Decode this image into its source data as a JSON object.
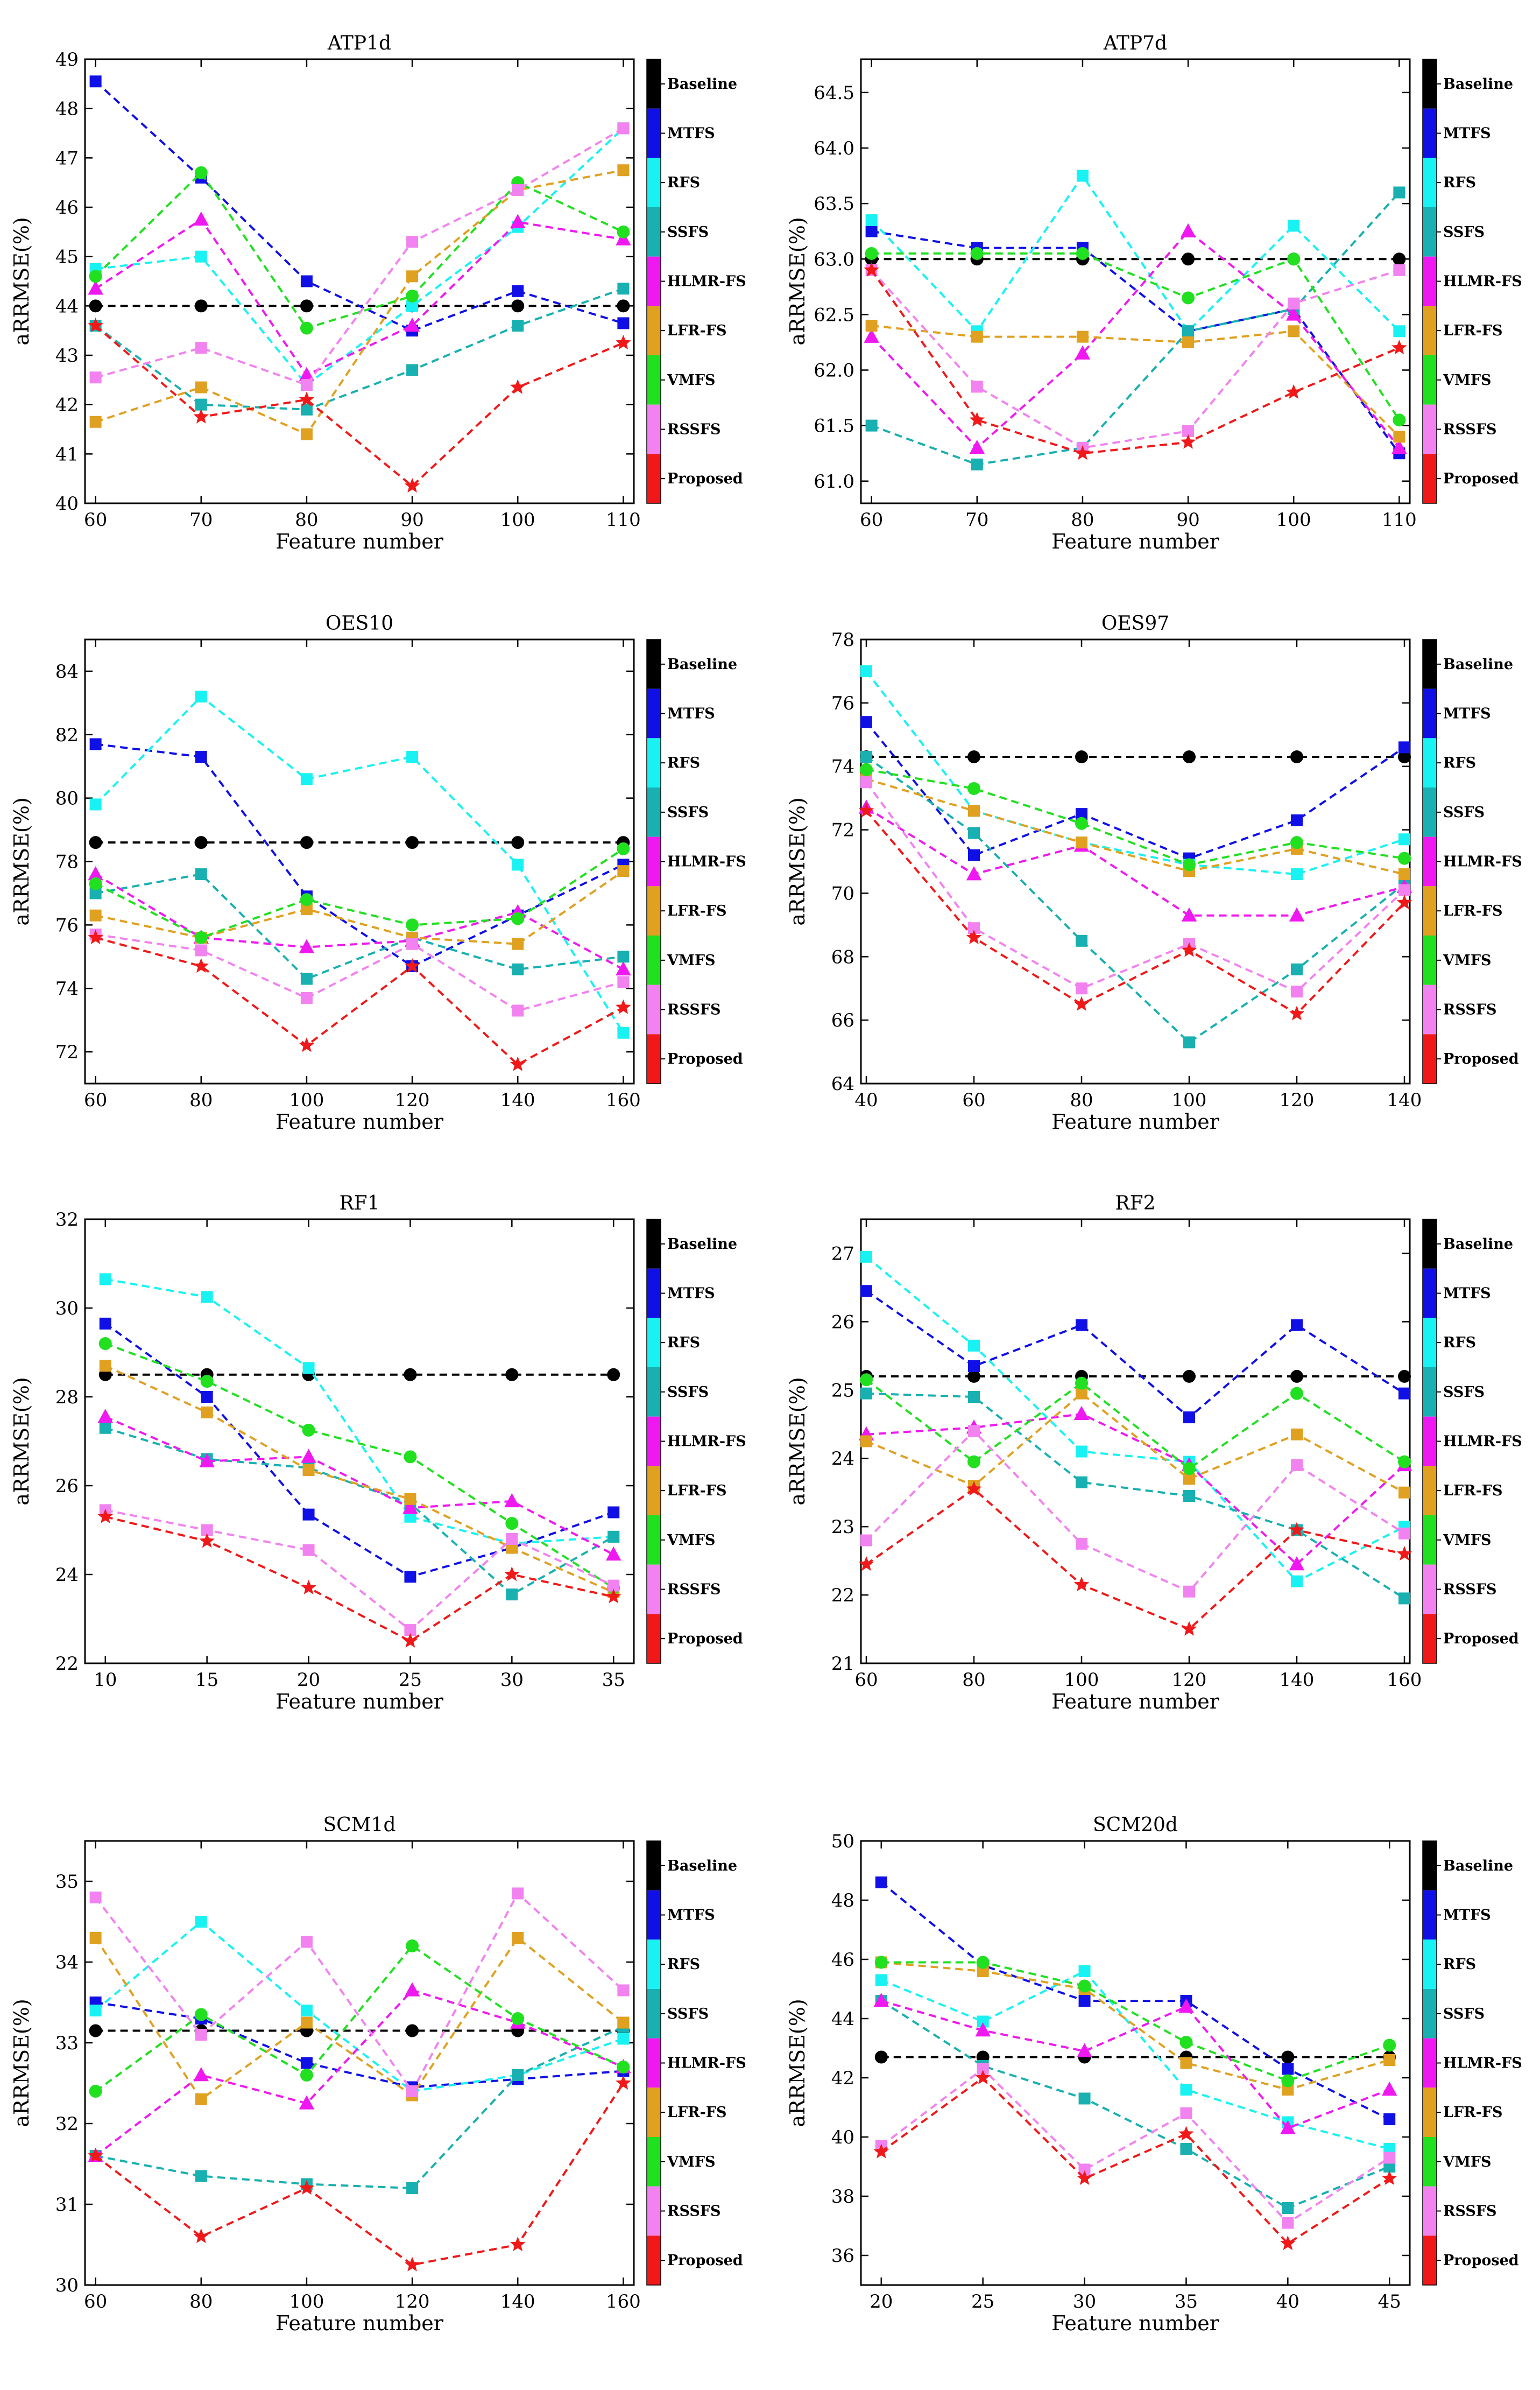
{
  "figure": {
    "methods": [
      "Baseline",
      "MTFS",
      "RFS",
      "SSFS",
      "HLMR-FS",
      "LFR-FS",
      "VMFS",
      "RSSFS",
      "Proposed"
    ],
    "colors": {
      "Baseline": "#000000",
      "MTFS": "#1010e6",
      "RFS": "#19f2f2",
      "SSFS": "#18b0b0",
      "HLMR-FS": "#f018f0",
      "LFR-FS": "#e0a020",
      "VMFS": "#20e020",
      "RSSFS": "#f282f0",
      "Proposed": "#f01818"
    },
    "markers": {
      "Baseline": "circle",
      "MTFS": "square",
      "RFS": "square",
      "SSFS": "square",
      "HLMR-FS": "triangle",
      "LFR-FS": "square",
      "VMFS": "circle",
      "RSSFS": "square",
      "Proposed": "star"
    }
  },
  "chart_data": [
    {
      "type": "line",
      "title": "ATP1d",
      "xlabel": "Feature number",
      "ylabel": "aRRMSE(%)",
      "x": [
        60,
        70,
        80,
        90,
        100,
        110
      ],
      "xlim": [
        59,
        111
      ],
      "ylim": [
        40,
        49
      ],
      "xticks": [
        "60",
        "70",
        "80",
        "90",
        "100",
        "110"
      ],
      "yticks": [
        "40",
        "41",
        "42",
        "43",
        "44",
        "45",
        "46",
        "47",
        "48",
        "49"
      ],
      "series": [
        {
          "name": "Baseline",
          "values": [
            44.0,
            44.0,
            44.0,
            44.0,
            44.0,
            44.0
          ]
        },
        {
          "name": "MTFS",
          "values": [
            48.55,
            46.6,
            44.5,
            43.5,
            44.3,
            43.65
          ]
        },
        {
          "name": "RFS",
          "values": [
            44.75,
            45.0,
            42.4,
            44.0,
            45.6,
            47.6
          ]
        },
        {
          "name": "SSFS",
          "values": [
            43.6,
            42.0,
            41.9,
            42.7,
            43.6,
            44.35
          ]
        },
        {
          "name": "HLMR-FS",
          "values": [
            44.35,
            45.75,
            42.6,
            43.6,
            45.7,
            45.35
          ]
        },
        {
          "name": "LFR-FS",
          "values": [
            41.65,
            42.35,
            41.4,
            44.6,
            46.35,
            46.75
          ]
        },
        {
          "name": "VMFS",
          "values": [
            44.6,
            46.7,
            43.55,
            44.2,
            46.5,
            45.5
          ]
        },
        {
          "name": "RSSFS",
          "values": [
            42.55,
            43.15,
            42.4,
            45.3,
            46.35,
            47.6
          ]
        },
        {
          "name": "Proposed",
          "values": [
            43.6,
            41.75,
            42.1,
            40.35,
            42.35,
            43.25
          ]
        }
      ]
    },
    {
      "type": "line",
      "title": "ATP7d",
      "xlabel": "Feature number",
      "ylabel": "aRRMSE(%)",
      "x": [
        60,
        70,
        80,
        90,
        100,
        110
      ],
      "xlim": [
        59,
        111
      ],
      "ylim": [
        60.8,
        64.8
      ],
      "xticks": [
        "60",
        "70",
        "80",
        "90",
        "100",
        "110"
      ],
      "yticks": [
        "61.0",
        "61.5",
        "62.0",
        "62.5",
        "63.0",
        "63.5",
        "64.0",
        "64.5"
      ],
      "series": [
        {
          "name": "Baseline",
          "values": [
            63.0,
            63.0,
            63.0,
            63.0,
            63.0,
            63.0
          ]
        },
        {
          "name": "MTFS",
          "values": [
            63.25,
            63.1,
            63.1,
            62.35,
            62.55,
            61.25
          ]
        },
        {
          "name": "RFS",
          "values": [
            63.35,
            62.35,
            63.75,
            62.35,
            63.3,
            62.35
          ]
        },
        {
          "name": "SSFS",
          "values": [
            61.5,
            61.15,
            61.3,
            62.35,
            62.55,
            63.6
          ]
        },
        {
          "name": "HLMR-FS",
          "values": [
            62.3,
            61.3,
            62.15,
            63.25,
            62.5,
            61.3
          ]
        },
        {
          "name": "LFR-FS",
          "values": [
            62.4,
            62.3,
            62.3,
            62.25,
            62.35,
            61.4
          ]
        },
        {
          "name": "VMFS",
          "values": [
            63.05,
            63.05,
            63.05,
            62.65,
            63.0,
            61.55
          ]
        },
        {
          "name": "RSSFS",
          "values": [
            62.9,
            61.85,
            61.3,
            61.45,
            62.6,
            62.9
          ]
        },
        {
          "name": "Proposed",
          "values": [
            62.9,
            61.55,
            61.25,
            61.35,
            61.8,
            62.2
          ]
        }
      ]
    },
    {
      "type": "line",
      "title": "OES10",
      "xlabel": "Feature number",
      "ylabel": "aRRMSE(%)",
      "x": [
        60,
        80,
        100,
        120,
        140,
        160
      ],
      "xlim": [
        58,
        162
      ],
      "ylim": [
        71,
        85
      ],
      "xticks": [
        "60",
        "80",
        "100",
        "120",
        "140",
        "160"
      ],
      "yticks": [
        "72",
        "74",
        "76",
        "78",
        "80",
        "82",
        "84"
      ],
      "series": [
        {
          "name": "Baseline",
          "values": [
            78.6,
            78.6,
            78.6,
            78.6,
            78.6,
            78.6
          ]
        },
        {
          "name": "MTFS",
          "values": [
            81.7,
            81.3,
            76.9,
            74.7,
            76.3,
            77.9
          ]
        },
        {
          "name": "RFS",
          "values": [
            79.8,
            83.2,
            80.6,
            81.3,
            77.9,
            72.6
          ]
        },
        {
          "name": "SSFS",
          "values": [
            77.0,
            77.6,
            74.3,
            75.6,
            74.6,
            75.0
          ]
        },
        {
          "name": "HLMR-FS",
          "values": [
            77.6,
            75.6,
            75.3,
            75.5,
            76.4,
            74.6
          ]
        },
        {
          "name": "LFR-FS",
          "values": [
            76.3,
            75.6,
            76.5,
            75.6,
            75.4,
            77.7
          ]
        },
        {
          "name": "VMFS",
          "values": [
            77.3,
            75.6,
            76.8,
            76.0,
            76.2,
            78.4
          ]
        },
        {
          "name": "RSSFS",
          "values": [
            75.7,
            75.2,
            73.7,
            75.4,
            73.3,
            74.2
          ]
        },
        {
          "name": "Proposed",
          "values": [
            75.6,
            74.7,
            72.2,
            74.7,
            71.6,
            73.4
          ]
        }
      ]
    },
    {
      "type": "line",
      "title": "OES97",
      "xlabel": "Feature number",
      "ylabel": "aRRMSE(%)",
      "x": [
        40,
        60,
        80,
        100,
        120,
        140
      ],
      "xlim": [
        39,
        141
      ],
      "ylim": [
        64,
        78
      ],
      "xticks": [
        "40",
        "60",
        "80",
        "100",
        "120",
        "140"
      ],
      "yticks": [
        "64",
        "66",
        "68",
        "70",
        "72",
        "74",
        "76",
        "78"
      ],
      "series": [
        {
          "name": "Baseline",
          "values": [
            74.3,
            74.3,
            74.3,
            74.3,
            74.3,
            74.3
          ]
        },
        {
          "name": "MTFS",
          "values": [
            75.4,
            71.2,
            72.5,
            71.1,
            72.3,
            74.6
          ]
        },
        {
          "name": "RFS",
          "values": [
            77.0,
            72.6,
            71.6,
            70.9,
            70.6,
            71.7
          ]
        },
        {
          "name": "SSFS",
          "values": [
            74.3,
            71.9,
            68.5,
            65.3,
            67.6,
            70.3
          ]
        },
        {
          "name": "HLMR-FS",
          "values": [
            72.7,
            70.6,
            71.5,
            69.3,
            69.3,
            70.2
          ]
        },
        {
          "name": "LFR-FS",
          "values": [
            73.6,
            72.6,
            71.6,
            70.7,
            71.4,
            70.6
          ]
        },
        {
          "name": "VMFS",
          "values": [
            73.9,
            73.3,
            72.2,
            70.9,
            71.6,
            71.1
          ]
        },
        {
          "name": "RSSFS",
          "values": [
            73.5,
            68.9,
            67.0,
            68.4,
            66.9,
            70.1
          ]
        },
        {
          "name": "Proposed",
          "values": [
            72.6,
            68.6,
            66.5,
            68.2,
            66.2,
            69.7
          ]
        }
      ]
    },
    {
      "type": "line",
      "title": "RF1",
      "xlabel": "Feature number",
      "ylabel": "aRRMSE(%)",
      "x": [
        10,
        15,
        20,
        25,
        30,
        35
      ],
      "xlim": [
        9,
        36
      ],
      "ylim": [
        22,
        32
      ],
      "xticks": [
        "10",
        "15",
        "20",
        "25",
        "30",
        "35"
      ],
      "yticks": [
        "22",
        "24",
        "26",
        "28",
        "30",
        "32"
      ],
      "series": [
        {
          "name": "Baseline",
          "values": [
            28.5,
            28.5,
            28.5,
            28.5,
            28.5,
            28.5
          ]
        },
        {
          "name": "MTFS",
          "values": [
            29.65,
            28.0,
            25.35,
            23.95,
            24.6,
            25.4
          ]
        },
        {
          "name": "RFS",
          "values": [
            30.65,
            30.25,
            28.65,
            25.3,
            24.7,
            24.85
          ]
        },
        {
          "name": "SSFS",
          "values": [
            27.3,
            26.6,
            26.4,
            25.6,
            23.55,
            24.85
          ]
        },
        {
          "name": "HLMR-FS",
          "values": [
            27.55,
            26.55,
            26.65,
            25.5,
            25.65,
            24.45
          ]
        },
        {
          "name": "LFR-FS",
          "values": [
            28.7,
            27.65,
            26.35,
            25.7,
            24.6,
            23.6
          ]
        },
        {
          "name": "VMFS",
          "values": [
            29.2,
            28.35,
            27.25,
            26.65,
            25.15,
            23.7
          ]
        },
        {
          "name": "RSSFS",
          "values": [
            25.45,
            25.0,
            24.55,
            22.75,
            24.8,
            23.75
          ]
        },
        {
          "name": "Proposed",
          "values": [
            25.3,
            24.75,
            23.7,
            22.5,
            24.0,
            23.5
          ]
        }
      ]
    },
    {
      "type": "line",
      "title": "RF2",
      "xlabel": "Feature number",
      "ylabel": "aRRMSE(%)",
      "x": [
        60,
        80,
        100,
        120,
        140,
        160
      ],
      "xlim": [
        59,
        161
      ],
      "ylim": [
        21,
        27.5
      ],
      "xticks": [
        "60",
        "80",
        "100",
        "120",
        "140",
        "160"
      ],
      "yticks": [
        "21",
        "22",
        "23",
        "24",
        "25",
        "26",
        "27"
      ],
      "series": [
        {
          "name": "Baseline",
          "values": [
            25.2,
            25.2,
            25.2,
            25.2,
            25.2,
            25.2
          ]
        },
        {
          "name": "MTFS",
          "values": [
            26.45,
            25.35,
            25.95,
            24.6,
            25.95,
            24.95
          ]
        },
        {
          "name": "RFS",
          "values": [
            26.95,
            25.65,
            24.1,
            23.95,
            22.2,
            23.0
          ]
        },
        {
          "name": "SSFS",
          "values": [
            24.95,
            24.9,
            23.65,
            23.45,
            22.95,
            21.95
          ]
        },
        {
          "name": "HLMR-FS",
          "values": [
            24.35,
            24.45,
            24.65,
            23.9,
            22.45,
            23.9
          ]
        },
        {
          "name": "LFR-FS",
          "values": [
            24.25,
            23.6,
            24.95,
            23.7,
            24.35,
            23.5
          ]
        },
        {
          "name": "VMFS",
          "values": [
            25.15,
            23.95,
            25.1,
            23.85,
            24.95,
            23.95
          ]
        },
        {
          "name": "RSSFS",
          "values": [
            22.8,
            24.4,
            22.75,
            22.05,
            23.9,
            22.9
          ]
        },
        {
          "name": "Proposed",
          "values": [
            22.45,
            23.55,
            22.15,
            21.5,
            22.95,
            22.6
          ]
        }
      ]
    },
    {
      "type": "line",
      "title": "SCM1d",
      "xlabel": "Feature number",
      "ylabel": "aRRMSE(%)",
      "x": [
        60,
        80,
        100,
        120,
        140,
        160
      ],
      "xlim": [
        58,
        162
      ],
      "ylim": [
        30,
        35.5
      ],
      "xticks": [
        "60",
        "80",
        "100",
        "120",
        "140",
        "160"
      ],
      "yticks": [
        "30",
        "31",
        "32",
        "33",
        "34",
        "35"
      ],
      "series": [
        {
          "name": "Baseline",
          "values": [
            33.15,
            33.15,
            33.15,
            33.15,
            33.15,
            33.15
          ]
        },
        {
          "name": "MTFS",
          "values": [
            33.5,
            33.3,
            32.75,
            32.45,
            32.55,
            32.65
          ]
        },
        {
          "name": "RFS",
          "values": [
            33.4,
            34.5,
            33.4,
            32.4,
            32.6,
            33.05
          ]
        },
        {
          "name": "SSFS",
          "values": [
            31.6,
            31.35,
            31.25,
            31.2,
            32.6,
            33.2
          ]
        },
        {
          "name": "HLMR-FS",
          "values": [
            31.6,
            32.6,
            32.25,
            33.65,
            33.25,
            32.7
          ]
        },
        {
          "name": "LFR-FS",
          "values": [
            34.3,
            32.3,
            33.25,
            32.35,
            34.3,
            33.25
          ]
        },
        {
          "name": "VMFS",
          "values": [
            32.4,
            33.35,
            32.6,
            34.2,
            33.3,
            32.7
          ]
        },
        {
          "name": "RSSFS",
          "values": [
            34.8,
            33.1,
            34.25,
            32.4,
            34.85,
            33.65
          ]
        },
        {
          "name": "Proposed",
          "values": [
            31.6,
            30.6,
            31.2,
            30.25,
            30.5,
            32.5
          ]
        }
      ]
    },
    {
      "type": "line",
      "title": "SCM20d",
      "xlabel": "Feature number",
      "ylabel": "aRRMSE(%)",
      "x": [
        20,
        25,
        30,
        35,
        40,
        45
      ],
      "xlim": [
        19,
        46
      ],
      "ylim": [
        35,
        50
      ],
      "xticks": [
        "20",
        "25",
        "30",
        "35",
        "40",
        "45"
      ],
      "yticks": [
        "36",
        "38",
        "40",
        "42",
        "44",
        "46",
        "48",
        "50"
      ],
      "series": [
        {
          "name": "Baseline",
          "values": [
            42.7,
            42.7,
            42.7,
            42.7,
            42.7,
            42.7
          ]
        },
        {
          "name": "MTFS",
          "values": [
            48.6,
            45.8,
            44.6,
            44.6,
            42.3,
            40.6
          ]
        },
        {
          "name": "RFS",
          "values": [
            45.3,
            43.9,
            45.6,
            41.6,
            40.5,
            39.6
          ]
        },
        {
          "name": "SSFS",
          "values": [
            44.6,
            42.4,
            41.3,
            39.6,
            37.6,
            39.0
          ]
        },
        {
          "name": "HLMR-FS",
          "values": [
            44.6,
            43.6,
            42.9,
            44.4,
            40.3,
            41.6
          ]
        },
        {
          "name": "LFR-FS",
          "values": [
            45.9,
            45.6,
            45.0,
            42.5,
            41.6,
            42.6
          ]
        },
        {
          "name": "VMFS",
          "values": [
            45.9,
            45.9,
            45.1,
            43.2,
            41.9,
            43.1
          ]
        },
        {
          "name": "RSSFS",
          "values": [
            39.7,
            42.3,
            38.9,
            40.8,
            37.1,
            39.3
          ]
        },
        {
          "name": "Proposed",
          "values": [
            39.5,
            42.0,
            38.6,
            40.1,
            36.4,
            38.6
          ]
        }
      ]
    }
  ]
}
